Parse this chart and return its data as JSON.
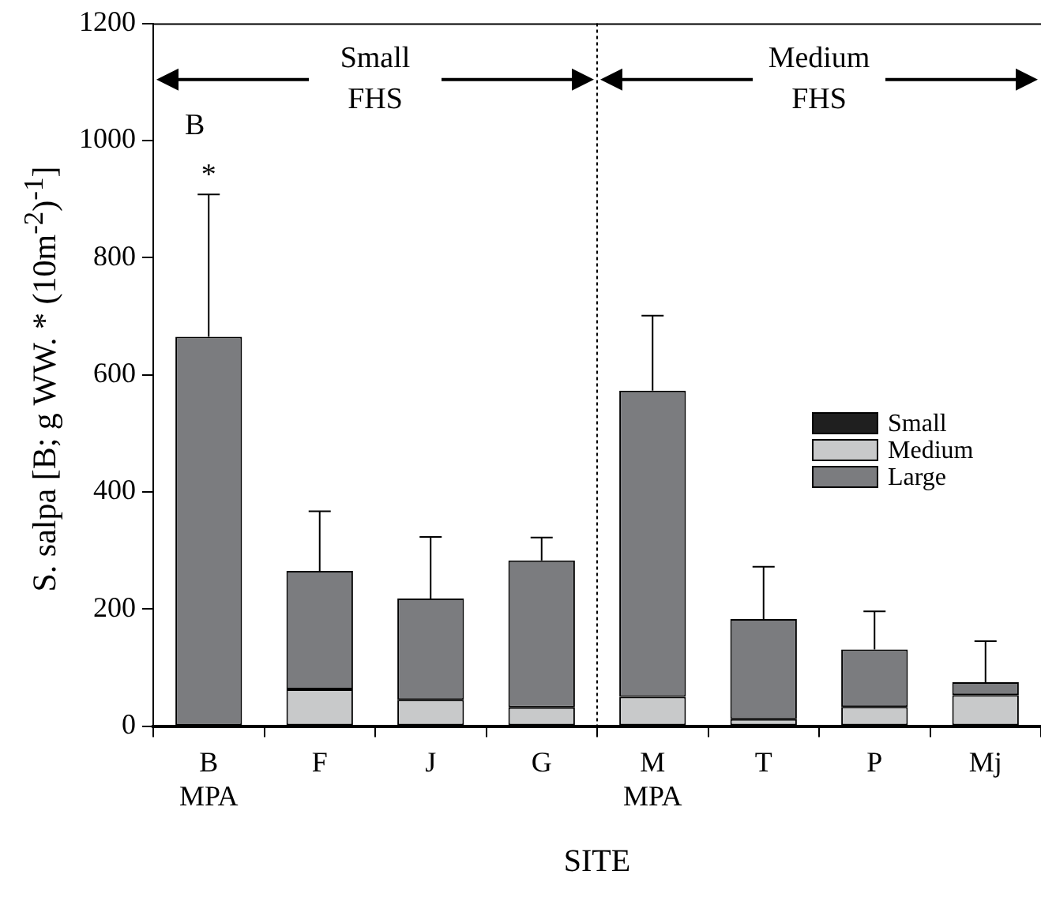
{
  "chart_data": {
    "type": "bar",
    "stacked": true,
    "xlabel": "SITE",
    "ylabel": "S. salpa [B; g WW. * (10m$^{-2}$)$^{-1}$]",
    "categories": [
      "B\nMPA",
      "F",
      "J",
      "G",
      "M\nMPA",
      "T",
      "P",
      "Mj"
    ],
    "series": [
      {
        "name": "Small",
        "color": "#1f1f1f",
        "values": [
          0,
          0,
          0,
          0,
          0,
          0,
          0,
          0
        ]
      },
      {
        "name": "Medium",
        "color": "#c8c9ca",
        "values": [
          0,
          63,
          45,
          32,
          50,
          12,
          33,
          53
        ]
      },
      {
        "name": "Large",
        "color": "#7b7c7f",
        "values": [
          665,
          202,
          173,
          251,
          523,
          171,
          98,
          22
        ],
        "errors": [
          [
            665,
            908
          ],
          [
            265,
            367
          ],
          [
            218,
            323
          ],
          [
            283,
            322
          ],
          [
            573,
            701
          ],
          [
            183,
            272
          ],
          [
            131,
            196
          ],
          [
            75,
            145
          ]
        ]
      }
    ],
    "ylim": [
      0,
      1200
    ],
    "yticks": [
      0,
      200,
      400,
      600,
      800,
      1000,
      1200
    ],
    "grid": false,
    "legend": "right",
    "annotations": [
      "Small\nFHS",
      "Medium\nFHS",
      "B",
      {
        "text": "*",
        "x": "B\nMPA",
        "y": 908
      }
    ]
  }
}
